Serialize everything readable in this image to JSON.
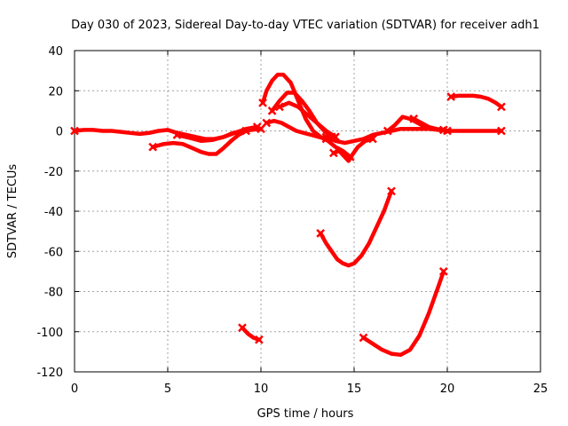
{
  "chart_data": {
    "type": "line",
    "title": "Day 030 of 2023, Sidereal Day-to-day VTEC variation (SDTVAR) for receiver adh1",
    "xlabel": "GPS time / hours",
    "ylabel": "SDTVAR / TECUs",
    "xlim": [
      0,
      25
    ],
    "ylim": [
      -120,
      40
    ],
    "xticks": [
      0,
      5,
      10,
      15,
      20,
      25
    ],
    "yticks": [
      -120,
      -100,
      -80,
      -60,
      -40,
      -20,
      0,
      20,
      40
    ],
    "grid": true,
    "color": "#ff0000",
    "series": [
      {
        "name": "s1",
        "x": [
          0,
          0.5,
          1,
          1.5,
          2,
          2.5,
          3,
          3.5,
          4,
          4.5,
          5,
          5.5,
          6,
          6.5,
          7,
          7.5,
          8,
          8.5,
          9,
          9.5,
          10
        ],
        "y": [
          0,
          0.5,
          0.5,
          0,
          0,
          -0.5,
          -1,
          -1.5,
          -1,
          0,
          0.5,
          -1,
          -2,
          -3,
          -4,
          -4,
          -3,
          -1,
          0,
          0.5,
          1
        ]
      },
      {
        "name": "s2",
        "x": [
          4.2,
          4.8,
          5.3,
          5.8,
          6.3,
          6.8,
          7.2,
          7.6,
          8.0,
          8.4,
          8.8,
          9.2
        ],
        "y": [
          -8,
          -6.5,
          -6,
          -6.5,
          -8.5,
          -10.5,
          -11.5,
          -11.5,
          -8.5,
          -5,
          -2,
          0
        ]
      },
      {
        "name": "s3",
        "x": [
          5.5,
          6.2,
          6.8,
          7.4,
          8.0,
          8.6,
          9.2,
          9.8
        ],
        "y": [
          -2,
          -3.5,
          -5,
          -4.5,
          -3,
          -1,
          1,
          2
        ]
      },
      {
        "name": "s4",
        "x": [
          10.1,
          10.3,
          10.6,
          10.9,
          11.2,
          11.6,
          12,
          12.4,
          12.8,
          13.2,
          13.6,
          14,
          14.4,
          14.8
        ],
        "y": [
          14,
          20,
          25,
          28,
          28,
          24,
          15,
          6,
          0,
          -3,
          -5,
          -8,
          -10,
          -13
        ]
      },
      {
        "name": "s5",
        "x": [
          10.6,
          11.0,
          11.4,
          11.8,
          12.2,
          12.6,
          13.0,
          13.4,
          13.8
        ],
        "y": [
          10,
          15,
          19,
          19,
          15,
          10,
          4,
          0,
          -3
        ]
      },
      {
        "name": "s6",
        "x": [
          10.3,
          10.7,
          11.1,
          11.5,
          11.9,
          12.3,
          12.7,
          13.1,
          13.5
        ],
        "y": [
          4,
          5,
          4,
          2,
          0,
          -1,
          -2,
          -3,
          -4
        ]
      },
      {
        "name": "s7",
        "x": [
          11,
          11.5,
          12,
          12.5,
          13,
          13.5,
          14
        ],
        "y": [
          12,
          14,
          12,
          8,
          4,
          0,
          -3
        ]
      },
      {
        "name": "s8",
        "x": [
          13.5,
          14,
          14.5,
          15,
          15.5,
          16,
          16.5,
          17,
          17.5,
          18,
          18.5,
          19,
          19.5,
          20,
          20.5,
          21,
          21.5,
          22,
          22.5,
          22.9
        ],
        "y": [
          -3,
          -5,
          -6,
          -5,
          -4,
          -2,
          -1,
          0,
          1,
          1,
          1,
          1,
          0.5,
          0,
          0,
          0,
          0,
          0,
          0,
          0
        ]
      },
      {
        "name": "s9",
        "x": [
          13.9,
          14.2,
          14.5,
          14.7,
          14.9,
          15.2,
          15.6,
          16.0
        ],
        "y": [
          -11,
          -10,
          -13,
          -15,
          -12,
          -8,
          -5,
          -4
        ]
      },
      {
        "name": "s10",
        "x": [
          16.8,
          17.2,
          17.6,
          18.0,
          18.4,
          18.8,
          19.2,
          19.6,
          20.0
        ],
        "y": [
          0,
          3,
          7,
          6,
          4,
          2,
          1,
          0.5,
          0
        ]
      },
      {
        "name": "s11",
        "x": [
          18.2,
          18.6,
          19.0,
          19.4,
          19.8
        ],
        "y": [
          6,
          4,
          2,
          1,
          0.5
        ]
      },
      {
        "name": "s12",
        "x": [
          20.2,
          20.6,
          21.0,
          21.4,
          21.8,
          22.2,
          22.6,
          22.9
        ],
        "y": [
          17,
          17.5,
          17.5,
          17.5,
          17,
          16,
          14,
          12
        ]
      },
      {
        "name": "s13",
        "x": [
          13.2,
          13.5,
          13.8,
          14.1,
          14.4,
          14.7,
          15.0,
          15.4,
          15.8,
          16.2,
          16.6,
          17.0
        ],
        "y": [
          -51,
          -56,
          -60,
          -64,
          -66,
          -67,
          -66,
          -62,
          -56,
          -48,
          -40,
          -30
        ]
      },
      {
        "name": "s14",
        "x": [
          15.5,
          16.0,
          16.5,
          17.0,
          17.5,
          18.0,
          18.5,
          19.0,
          19.5,
          19.8
        ],
        "y": [
          -103,
          -106,
          -109,
          -111,
          -111.5,
          -109,
          -102,
          -91,
          -78,
          -70
        ]
      },
      {
        "name": "s15",
        "x": [
          9.0,
          9.3,
          9.6,
          9.9
        ],
        "y": [
          -98,
          -101,
          -103,
          -104
        ]
      }
    ]
  }
}
